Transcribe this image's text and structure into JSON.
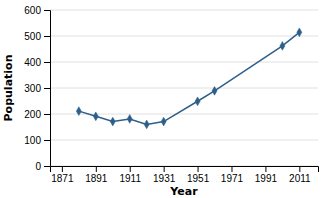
{
  "chart_data": {
    "type": "line",
    "x": [
      1881,
      1891,
      1901,
      1911,
      1921,
      1931,
      1951,
      1961,
      2001,
      2011
    ],
    "values": [
      211,
      191,
      171,
      181,
      160,
      171,
      249,
      289,
      462,
      514
    ],
    "color": "#2E5F8A",
    "marker": "diamond",
    "xlabel": "Year",
    "ylabel": "Population",
    "xlim": [
      1864,
      2022
    ],
    "ylim": [
      0,
      600
    ],
    "xticks": [
      1871,
      1891,
      1911,
      1931,
      1951,
      1971,
      1991,
      2011
    ],
    "yticks": [
      0,
      100,
      200,
      300,
      400,
      500,
      600
    ],
    "grid": "y"
  }
}
